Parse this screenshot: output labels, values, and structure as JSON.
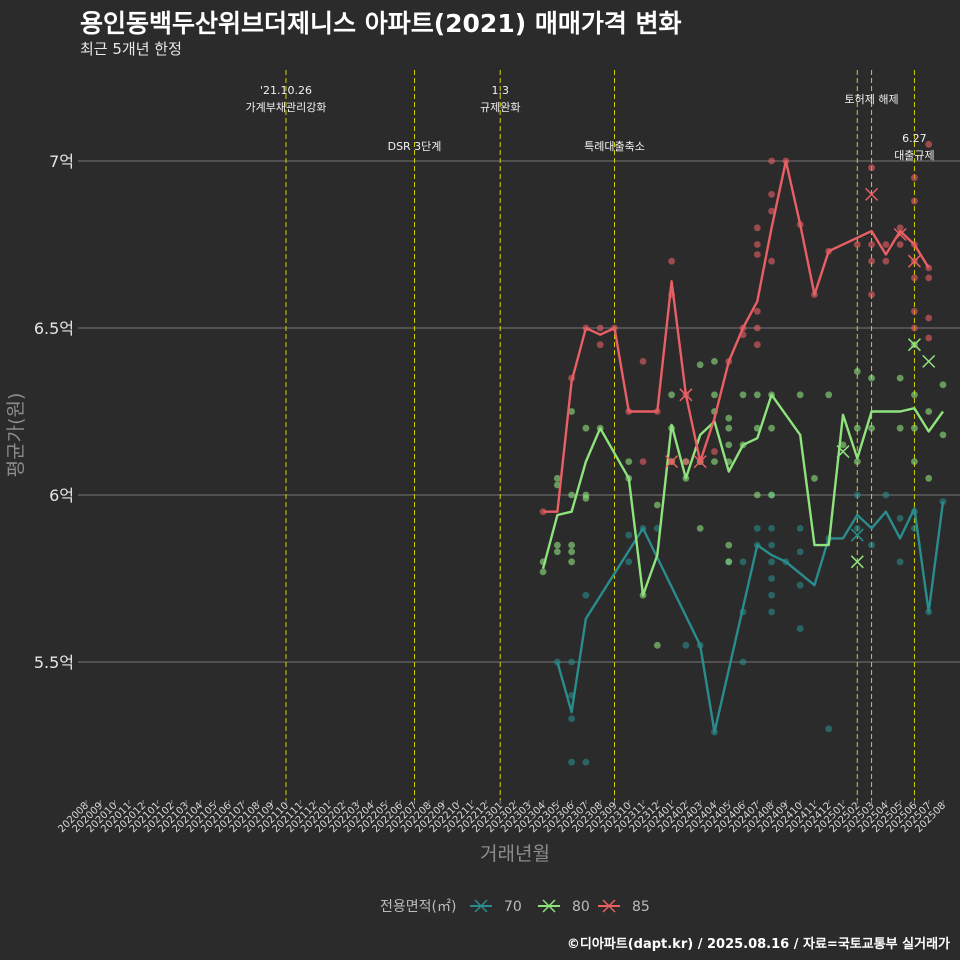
{
  "title": "용인동백두산위브더제니스 아파트(2021) 매매가격 변화",
  "subtitle": "최근 5개년 한정",
  "footer": "©디아파트(dapt.kr) / 2025.08.16 / 자료=국토교통부 실거래가",
  "colors": {
    "background": "#2b2b2b",
    "grid": "#777777",
    "event_line": "#d4d000",
    "70": "#2a8c8c",
    "80": "#8fe37d",
    "85": "#e85f64"
  },
  "chart_data": {
    "type": "line",
    "xlabel": "거래년월",
    "ylabel": "평균가(원)",
    "categories": [
      "202008",
      "202009",
      "202010",
      "202011",
      "202012",
      "202101",
      "202102",
      "202103",
      "202104",
      "202105",
      "202106",
      "202107",
      "202108",
      "202109",
      "202110",
      "202111",
      "202112",
      "202201",
      "202202",
      "202203",
      "202204",
      "202205",
      "202206",
      "202207",
      "202208",
      "202209",
      "202210",
      "202211",
      "202212",
      "202301",
      "202302",
      "202303",
      "202304",
      "202305",
      "202306",
      "202307",
      "202308",
      "202309",
      "202310",
      "202311",
      "202312",
      "202401",
      "202402",
      "202403",
      "202404",
      "202405",
      "202406",
      "202407",
      "202408",
      "202409",
      "202410",
      "202411",
      "202412",
      "202501",
      "202502",
      "202503",
      "202504",
      "202505",
      "202506",
      "202507",
      "202508"
    ],
    "y_ticks": [
      5.5,
      6,
      6.5,
      7
    ],
    "y_tick_labels": [
      "5.5억",
      "6억",
      "6.5억",
      "7억"
    ],
    "ylim": [
      5.1,
      7.2
    ],
    "grid": true,
    "legend": {
      "title": "전용면적(㎡)",
      "position": "bottom",
      "entries": [
        "70",
        "80",
        "85"
      ]
    },
    "events": [
      {
        "x": "202110",
        "label_line1": "'21.10.26",
        "label_line2": "가계부채관리강화",
        "level": "upper"
      },
      {
        "x": "202207",
        "label_line1": "DSR 3단계",
        "label_line2": "",
        "level": "lower"
      },
      {
        "x": "202301",
        "label_line1": "1.3",
        "label_line2": "규제완화",
        "level": "upper"
      },
      {
        "x": "202309",
        "label_line1": "특례대출축소",
        "label_line2": "",
        "level": "lower"
      },
      {
        "x": "202502",
        "label_line1": "",
        "label_line2": "",
        "level": "none"
      },
      {
        "x": "202503",
        "label_line1": "토허제 해제",
        "label_line2": "",
        "level": "upper2"
      },
      {
        "x": "202506",
        "label_line1": "6.27",
        "label_line2": "대출규제",
        "level": "lower2"
      }
    ],
    "series": [
      {
        "name": "70",
        "line": [
          [
            "202305",
            5.5
          ],
          [
            "202306",
            5.35
          ],
          [
            "202307",
            5.63
          ],
          [
            "202311",
            5.9
          ],
          [
            "202403",
            5.55
          ],
          [
            "202404",
            5.29
          ],
          [
            "202407",
            5.85
          ],
          [
            "202408",
            5.82
          ],
          [
            "202409",
            5.8
          ],
          [
            "202411",
            5.73
          ],
          [
            "202412",
            5.87
          ],
          [
            "202501",
            5.87
          ],
          [
            "202502",
            5.94
          ],
          [
            "202503",
            5.9
          ],
          [
            "202504",
            5.95
          ],
          [
            "202505",
            5.87
          ],
          [
            "202506",
            5.96
          ],
          [
            "202507",
            5.65
          ],
          [
            "202508",
            5.98
          ]
        ],
        "points": [
          [
            "202305",
            5.5
          ],
          [
            "202306",
            5.5
          ],
          [
            "202306",
            5.4
          ],
          [
            "202306",
            5.33
          ],
          [
            "202306",
            5.2
          ],
          [
            "202307",
            5.2
          ],
          [
            "202307",
            5.7
          ],
          [
            "202310",
            5.8
          ],
          [
            "202310",
            5.88
          ],
          [
            "202311",
            5.9
          ],
          [
            "202312",
            5.9
          ],
          [
            "202402",
            5.55
          ],
          [
            "202403",
            5.55
          ],
          [
            "202404",
            5.29
          ],
          [
            "202405",
            5.8
          ],
          [
            "202406",
            5.5
          ],
          [
            "202406",
            5.65
          ],
          [
            "202406",
            5.8
          ],
          [
            "202407",
            5.85
          ],
          [
            "202407",
            5.9
          ],
          [
            "202408",
            5.8
          ],
          [
            "202408",
            5.75
          ],
          [
            "202408",
            5.7
          ],
          [
            "202408",
            5.65
          ],
          [
            "202408",
            5.9
          ],
          [
            "202408",
            6.0
          ],
          [
            "202408",
            5.85
          ],
          [
            "202409",
            5.8
          ],
          [
            "202410",
            5.9
          ],
          [
            "202410",
            5.73
          ],
          [
            "202410",
            5.6
          ],
          [
            "202410",
            5.83
          ],
          [
            "202412",
            5.3
          ],
          [
            "202412",
            5.87
          ],
          [
            "202502",
            5.9
          ],
          [
            "202502",
            6.0
          ],
          [
            "202503",
            5.85
          ],
          [
            "202504",
            6.0
          ],
          [
            "202505",
            5.8
          ],
          [
            "202505",
            5.93
          ],
          [
            "202506",
            5.95
          ],
          [
            "202506",
            5.9
          ],
          [
            "202507",
            5.65
          ],
          [
            "202508",
            5.98
          ]
        ],
        "markers": [
          [
            "202502",
            5.88
          ]
        ]
      },
      {
        "name": "80",
        "line": [
          [
            "202304",
            5.78
          ],
          [
            "202305",
            5.94
          ],
          [
            "202306",
            5.95
          ],
          [
            "202307",
            6.1
          ],
          [
            "202308",
            6.2
          ],
          [
            "202310",
            6.05
          ],
          [
            "202311",
            5.7
          ],
          [
            "202312",
            5.82
          ],
          [
            "202401",
            6.21
          ],
          [
            "202402",
            6.05
          ],
          [
            "202403",
            6.18
          ],
          [
            "202404",
            6.22
          ],
          [
            "202405",
            6.07
          ],
          [
            "202406",
            6.15
          ],
          [
            "202407",
            6.17
          ],
          [
            "202408",
            6.3
          ],
          [
            "202410",
            6.18
          ],
          [
            "202411",
            5.85
          ],
          [
            "202412",
            5.85
          ],
          [
            "202501",
            6.24
          ],
          [
            "202502",
            6.11
          ],
          [
            "202503",
            6.25
          ],
          [
            "202505",
            6.25
          ],
          [
            "202506",
            6.26
          ],
          [
            "202507",
            6.19
          ],
          [
            "202508",
            6.25
          ]
        ],
        "points": [
          [
            "202304",
            5.77
          ],
          [
            "202304",
            5.8
          ],
          [
            "202305",
            6.05
          ],
          [
            "202305",
            6.03
          ],
          [
            "202305",
            5.85
          ],
          [
            "202305",
            5.83
          ],
          [
            "202306",
            6.25
          ],
          [
            "202306",
            6.0
          ],
          [
            "202306",
            5.85
          ],
          [
            "202306",
            5.83
          ],
          [
            "202306",
            5.8
          ],
          [
            "202307",
            6.2
          ],
          [
            "202307",
            6.0
          ],
          [
            "202307",
            5.99
          ],
          [
            "202308",
            6.2
          ],
          [
            "202310",
            6.1
          ],
          [
            "202310",
            6.05
          ],
          [
            "202311",
            5.7
          ],
          [
            "202312",
            5.97
          ],
          [
            "202312",
            5.55
          ],
          [
            "202401",
            6.3
          ],
          [
            "202401",
            6.2
          ],
          [
            "202401",
            6.1
          ],
          [
            "202402",
            6.05
          ],
          [
            "202402",
            6.1
          ],
          [
            "202403",
            6.39
          ],
          [
            "202403",
            6.1
          ],
          [
            "202403",
            5.9
          ],
          [
            "202404",
            6.4
          ],
          [
            "202404",
            6.3
          ],
          [
            "202404",
            6.25
          ],
          [
            "202404",
            6.1
          ],
          [
            "202405",
            6.23
          ],
          [
            "202405",
            6.2
          ],
          [
            "202405",
            6.15
          ],
          [
            "202405",
            6.1
          ],
          [
            "202405",
            5.85
          ],
          [
            "202405",
            5.8
          ],
          [
            "202406",
            6.3
          ],
          [
            "202406",
            6.15
          ],
          [
            "202407",
            6.3
          ],
          [
            "202407",
            6.2
          ],
          [
            "202407",
            6.0
          ],
          [
            "202408",
            6.3
          ],
          [
            "202408",
            6.2
          ],
          [
            "202408",
            6.0
          ],
          [
            "202410",
            6.3
          ],
          [
            "202411",
            6.05
          ],
          [
            "202412",
            6.3
          ],
          [
            "202501",
            6.15
          ],
          [
            "202502",
            6.37
          ],
          [
            "202502",
            6.2
          ],
          [
            "202502",
            6.1
          ],
          [
            "202503",
            6.35
          ],
          [
            "202503",
            6.2
          ],
          [
            "202505",
            6.35
          ],
          [
            "202505",
            6.2
          ],
          [
            "202506",
            6.45
          ],
          [
            "202506",
            6.3
          ],
          [
            "202506",
            6.2
          ],
          [
            "202506",
            6.1
          ],
          [
            "202507",
            6.25
          ],
          [
            "202507",
            6.05
          ],
          [
            "202508",
            6.33
          ],
          [
            "202508",
            6.18
          ]
        ],
        "markers": [
          [
            "202501",
            6.13
          ],
          [
            "202502",
            5.8
          ],
          [
            "202506",
            6.45
          ],
          [
            "202507",
            6.4
          ]
        ]
      },
      {
        "name": "85",
        "line": [
          [
            "202304",
            5.95
          ],
          [
            "202305",
            5.95
          ],
          [
            "202306",
            6.34
          ],
          [
            "202307",
            6.5
          ],
          [
            "202308",
            6.48
          ],
          [
            "202309",
            6.5
          ],
          [
            "202310",
            6.25
          ],
          [
            "202312",
            6.25
          ],
          [
            "202401",
            6.64
          ],
          [
            "202402",
            6.3
          ],
          [
            "202403",
            6.1
          ],
          [
            "202404",
            6.23
          ],
          [
            "202405",
            6.4
          ],
          [
            "202406",
            6.5
          ],
          [
            "202407",
            6.58
          ],
          [
            "202408",
            6.8
          ],
          [
            "202409",
            7.0
          ],
          [
            "202410",
            6.81
          ],
          [
            "202411",
            6.6
          ],
          [
            "202412",
            6.73
          ],
          [
            "202503",
            6.79
          ],
          [
            "202504",
            6.72
          ],
          [
            "202505",
            6.79
          ],
          [
            "202506",
            6.75
          ],
          [
            "202507",
            6.68
          ]
        ],
        "points": [
          [
            "202304",
            5.95
          ],
          [
            "202306",
            6.35
          ],
          [
            "202307",
            6.5
          ],
          [
            "202308",
            6.5
          ],
          [
            "202308",
            6.45
          ],
          [
            "202309",
            6.5
          ],
          [
            "202310",
            6.25
          ],
          [
            "202311",
            6.4
          ],
          [
            "202311",
            6.1
          ],
          [
            "202312",
            6.25
          ],
          [
            "202401",
            6.7
          ],
          [
            "202401",
            6.6
          ],
          [
            "202401",
            6.1
          ],
          [
            "202402",
            6.3
          ],
          [
            "202402",
            6.1
          ],
          [
            "202403",
            6.1
          ],
          [
            "202404",
            6.13
          ],
          [
            "202405",
            6.4
          ],
          [
            "202406",
            6.5
          ],
          [
            "202406",
            6.48
          ],
          [
            "202407",
            6.8
          ],
          [
            "202407",
            6.75
          ],
          [
            "202407",
            6.72
          ],
          [
            "202407",
            6.55
          ],
          [
            "202407",
            6.5
          ],
          [
            "202407",
            6.45
          ],
          [
            "202408",
            7.0
          ],
          [
            "202408",
            6.9
          ],
          [
            "202408",
            6.85
          ],
          [
            "202408",
            6.7
          ],
          [
            "202409",
            7.0
          ],
          [
            "202410",
            6.81
          ],
          [
            "202411",
            6.6
          ],
          [
            "202412",
            6.73
          ],
          [
            "202502",
            6.75
          ],
          [
            "202503",
            6.98
          ],
          [
            "202503",
            6.75
          ],
          [
            "202503",
            6.7
          ],
          [
            "202503",
            6.6
          ],
          [
            "202504",
            6.75
          ],
          [
            "202504",
            6.7
          ],
          [
            "202505",
            6.8
          ],
          [
            "202505",
            6.75
          ],
          [
            "202506",
            6.95
          ],
          [
            "202506",
            6.88
          ],
          [
            "202506",
            6.75
          ],
          [
            "202506",
            6.7
          ],
          [
            "202506",
            6.65
          ],
          [
            "202506",
            6.55
          ],
          [
            "202506",
            6.5
          ],
          [
            "202507",
            7.05
          ],
          [
            "202507",
            6.68
          ],
          [
            "202507",
            6.65
          ],
          [
            "202507",
            6.53
          ],
          [
            "202507",
            6.47
          ]
        ],
        "markers": [
          [
            "202402",
            6.3
          ],
          [
            "202401",
            6.1
          ],
          [
            "202403",
            6.1
          ],
          [
            "202503",
            6.9
          ],
          [
            "202505",
            6.78
          ],
          [
            "202506",
            6.7
          ]
        ]
      }
    ]
  }
}
